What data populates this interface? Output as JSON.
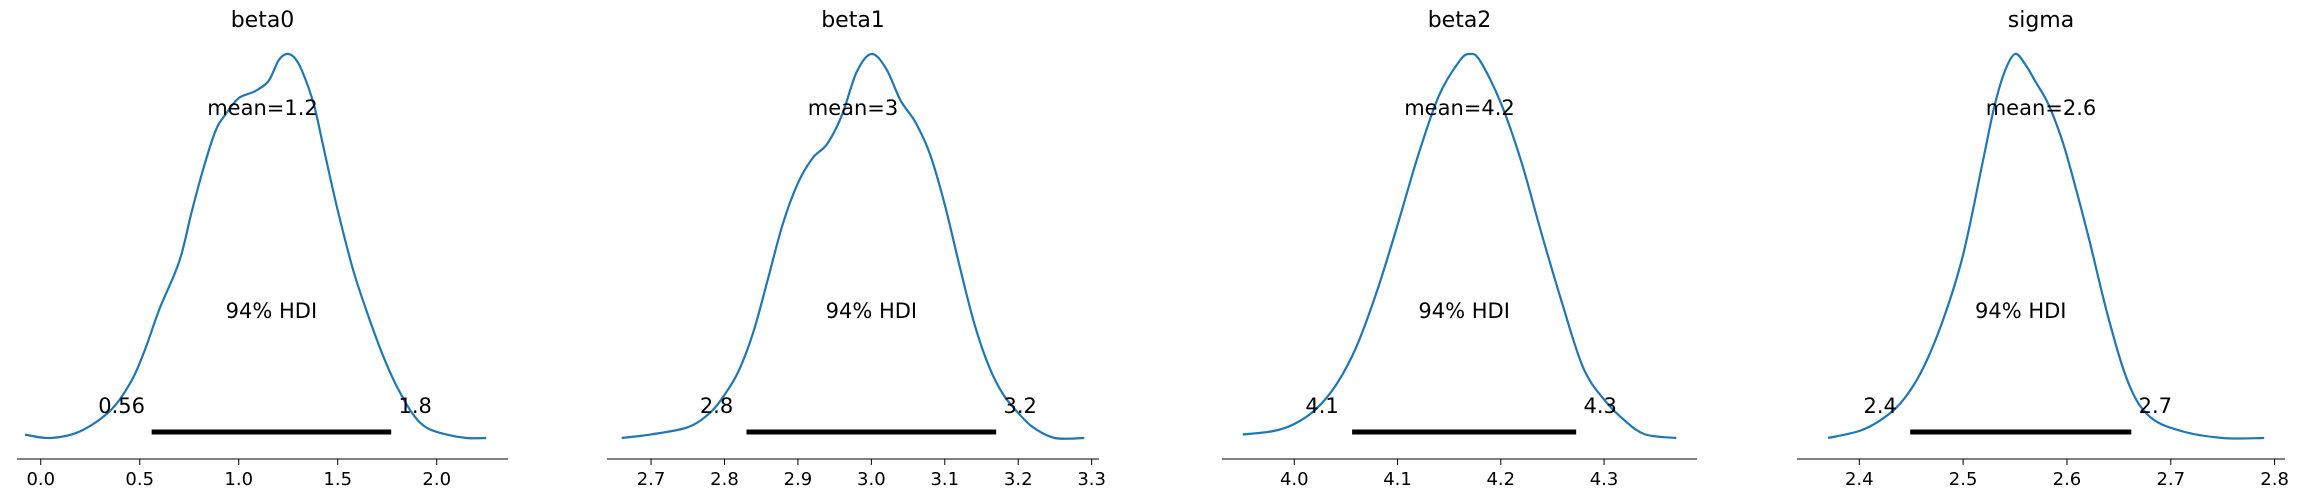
{
  "chart_data": [
    {
      "type": "density",
      "title": "beta0",
      "mean_label": "mean=1.2",
      "hdi_label": "94% HDI",
      "hdi": [
        0.56,
        1.77
      ],
      "hdi_tick_labels": [
        "0.56",
        "1.8"
      ],
      "xlim": [
        -0.12,
        2.36
      ],
      "xticks": [
        0.0,
        0.5,
        1.0,
        1.5,
        2.0
      ],
      "xtick_labels": [
        "0.0",
        "0.5",
        "1.0",
        "1.5",
        "2.0"
      ],
      "density_x": [
        -0.08,
        0.05,
        0.2,
        0.35,
        0.45,
        0.52,
        0.6,
        0.7,
        0.76,
        0.82,
        0.88,
        0.93,
        1.0,
        1.08,
        1.15,
        1.2,
        1.24,
        1.28,
        1.32,
        1.38,
        1.43,
        1.5,
        1.58,
        1.66,
        1.73,
        1.8,
        1.88,
        1.95,
        2.05,
        2.15,
        2.25
      ],
      "density_y": [
        0.01,
        0.0,
        0.02,
        0.08,
        0.16,
        0.25,
        0.38,
        0.52,
        0.66,
        0.79,
        0.9,
        0.95,
        1.0,
        1.02,
        1.05,
        1.11,
        1.13,
        1.12,
        1.08,
        0.98,
        0.85,
        0.67,
        0.49,
        0.35,
        0.24,
        0.15,
        0.07,
        0.03,
        0.01,
        0.0,
        0.0
      ]
    },
    {
      "type": "density",
      "title": "beta1",
      "mean_label": "mean=3",
      "hdi_label": "94% HDI",
      "hdi": [
        2.83,
        3.17
      ],
      "hdi_tick_labels": [
        "2.8",
        "3.2"
      ],
      "xlim": [
        2.64,
        3.31
      ],
      "xticks": [
        2.7,
        2.8,
        2.9,
        3.0,
        3.1,
        3.2,
        3.3
      ],
      "xtick_labels": [
        "2.7",
        "2.8",
        "2.9",
        "3.0",
        "3.1",
        "3.2",
        "3.3"
      ],
      "density_x": [
        2.66,
        2.7,
        2.75,
        2.78,
        2.8,
        2.82,
        2.84,
        2.86,
        2.88,
        2.9,
        2.92,
        2.94,
        2.96,
        2.98,
        3.0,
        3.02,
        3.04,
        3.06,
        3.08,
        3.1,
        3.12,
        3.14,
        3.16,
        3.18,
        3.2,
        3.22,
        3.25,
        3.29
      ],
      "density_y": [
        0.0,
        0.01,
        0.03,
        0.07,
        0.12,
        0.19,
        0.3,
        0.45,
        0.6,
        0.71,
        0.78,
        0.82,
        0.9,
        1.02,
        1.07,
        1.03,
        0.94,
        0.88,
        0.79,
        0.65,
        0.48,
        0.32,
        0.2,
        0.12,
        0.07,
        0.03,
        0.0,
        0.0
      ]
    },
    {
      "type": "density",
      "title": "beta2",
      "mean_label": "mean=4.2",
      "hdi_label": "94% HDI",
      "hdi": [
        4.056,
        4.273
      ],
      "hdi_tick_labels": [
        "4.1",
        "4.3"
      ],
      "xlim": [
        3.93,
        4.39
      ],
      "xticks": [
        4.0,
        4.1,
        4.2,
        4.3
      ],
      "xtick_labels": [
        "4.0",
        "4.1",
        "4.2",
        "4.3"
      ],
      "density_x": [
        3.95,
        3.98,
        4.0,
        4.02,
        4.04,
        4.06,
        4.08,
        4.1,
        4.12,
        4.14,
        4.16,
        4.17,
        4.18,
        4.2,
        4.22,
        4.24,
        4.26,
        4.28,
        4.3,
        4.32,
        4.34,
        4.37
      ],
      "density_y": [
        0.01,
        0.02,
        0.04,
        0.08,
        0.15,
        0.26,
        0.42,
        0.61,
        0.81,
        0.98,
        1.08,
        1.1,
        1.08,
        0.96,
        0.79,
        0.58,
        0.38,
        0.2,
        0.11,
        0.05,
        0.01,
        0.0
      ]
    },
    {
      "type": "density",
      "title": "sigma",
      "mean_label": "mean=2.6",
      "hdi_label": "94% HDI",
      "hdi": [
        2.449,
        2.662
      ],
      "hdi_tick_labels": [
        "2.4",
        "2.7"
      ],
      "xlim": [
        2.34,
        2.81
      ],
      "xticks": [
        2.4,
        2.5,
        2.6,
        2.7,
        2.8
      ],
      "xtick_labels": [
        "2.4",
        "2.5",
        "2.6",
        "2.7",
        "2.8"
      ],
      "density_x": [
        2.37,
        2.4,
        2.42,
        2.44,
        2.46,
        2.48,
        2.5,
        2.52,
        2.53,
        2.54,
        2.55,
        2.56,
        2.57,
        2.58,
        2.59,
        2.6,
        2.62,
        2.64,
        2.66,
        2.68,
        2.71,
        2.75,
        2.79
      ],
      "density_y": [
        0.0,
        0.02,
        0.05,
        0.1,
        0.19,
        0.33,
        0.52,
        0.8,
        0.94,
        1.04,
        1.09,
        1.06,
        1.01,
        0.96,
        0.89,
        0.8,
        0.58,
        0.34,
        0.15,
        0.06,
        0.02,
        0.0,
        0.0
      ]
    }
  ],
  "colors": {
    "density_line": "#1f77b4",
    "hdi_bar": "#000000",
    "axis": "#000000"
  }
}
